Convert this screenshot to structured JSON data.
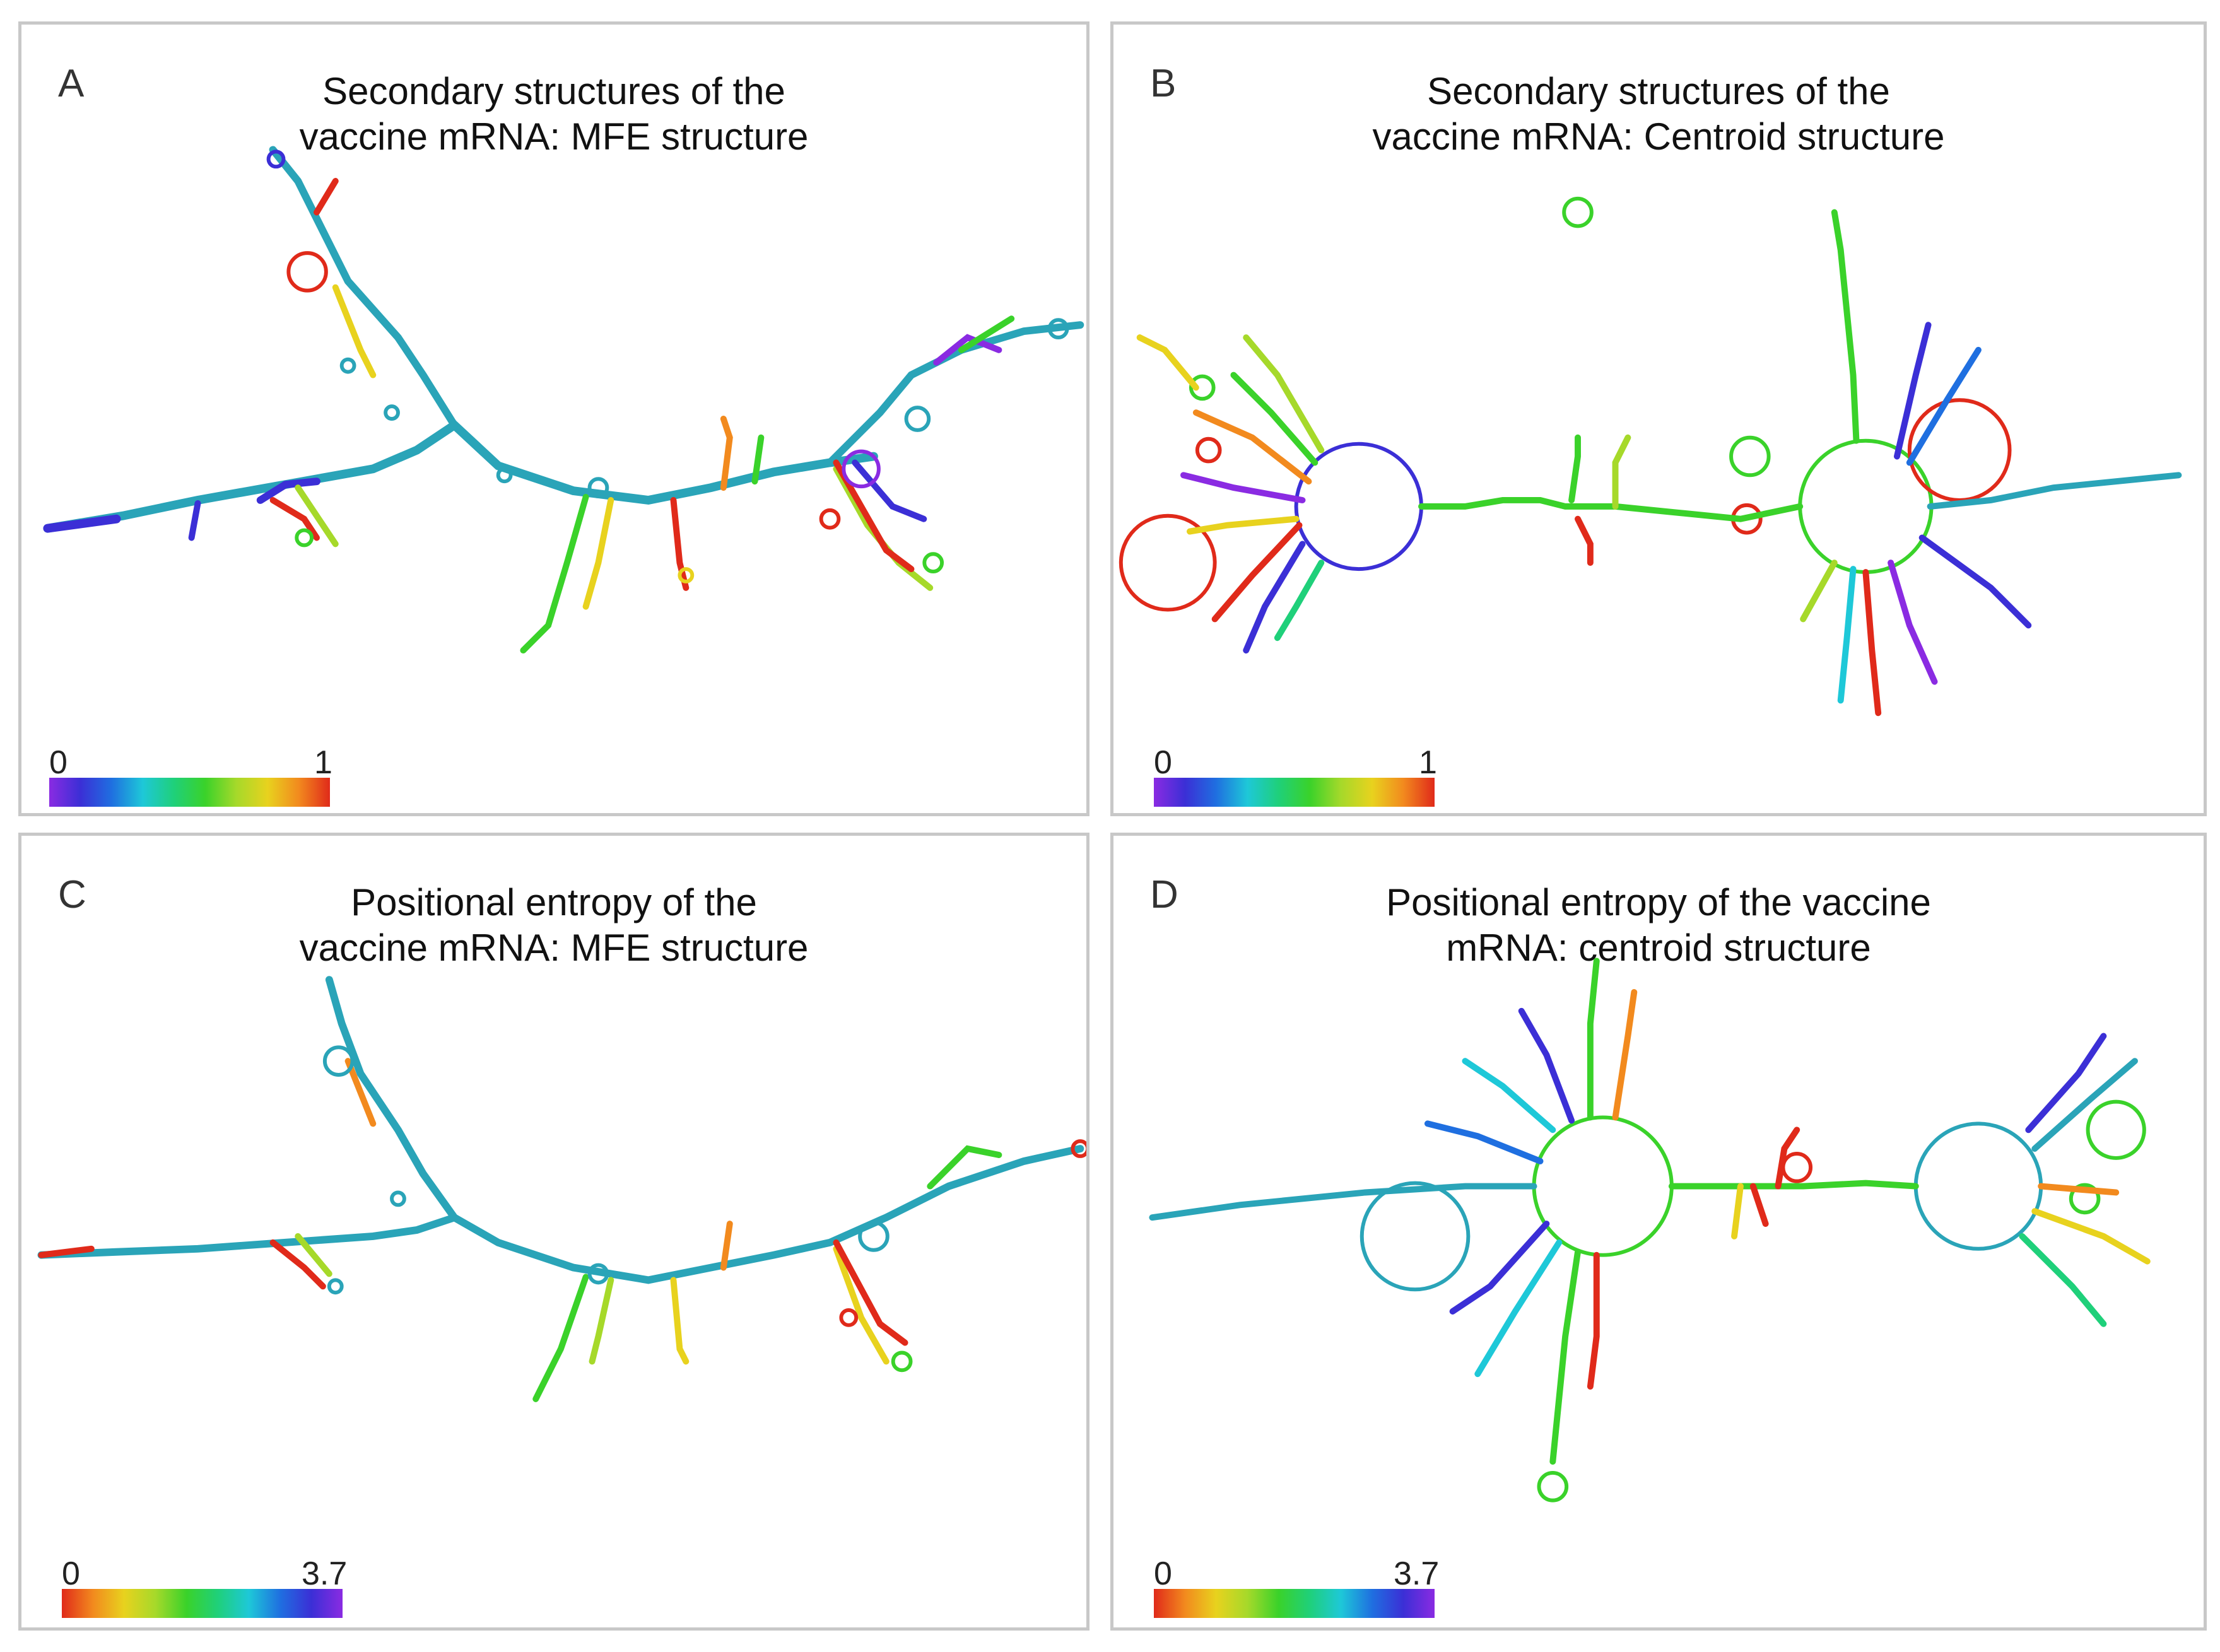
{
  "panels": [
    {
      "letter": "A",
      "title": "Secondary structures of the\nvaccine mRNA: MFE structure",
      "scale": {
        "min": "0",
        "max": "1",
        "direction": "purple-to-red"
      }
    },
    {
      "letter": "B",
      "title": "Secondary structures of the\nvaccine mRNA: Centroid structure",
      "scale": {
        "min": "0",
        "max": "1",
        "direction": "purple-to-red"
      }
    },
    {
      "letter": "C",
      "title": "Positional entropy of the\nvaccine mRNA: MFE structure",
      "scale": {
        "min": "0",
        "max": "3.7",
        "direction": "red-to-purple"
      }
    },
    {
      "letter": "D",
      "title": "Positional entropy of the vaccine\nmRNA: centroid structure",
      "scale": {
        "min": "0",
        "max": "3.7",
        "direction": "red-to-purple"
      }
    }
  ],
  "colors": {
    "border": "#c8c8c8",
    "backbone": "#2aa4b8",
    "palette": [
      "#8a2be2",
      "#3b2fd6",
      "#1f6fe0",
      "#1ec8d8",
      "#1fd07a",
      "#3ad22a",
      "#a6d92a",
      "#e8d21e",
      "#f28a1e",
      "#e02a1a"
    ]
  }
}
